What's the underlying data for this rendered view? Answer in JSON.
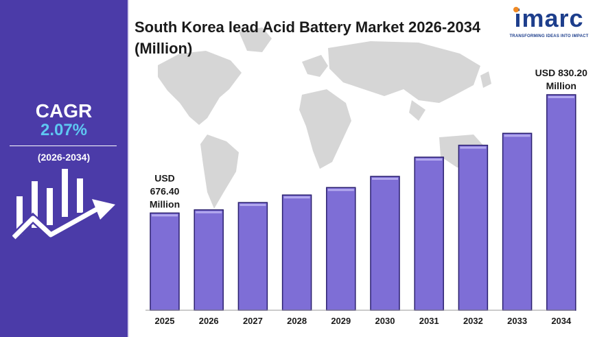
{
  "cagr": {
    "label": "CAGR",
    "value": "2.07%",
    "period": "(2026-2034)"
  },
  "logo": {
    "name": "imarc",
    "tagline": "TRANSFORMING IDEAS INTO IMPACT"
  },
  "colors": {
    "panel": "#4b3ba8",
    "accent": "#5ec8f2",
    "bar": "#7e6ed6",
    "bar_edge": "#2a1f6e"
  },
  "chart_data": {
    "type": "bar",
    "title": "South Korea lead Acid Battery Market 2026-2034 (Million)",
    "xlabel": "",
    "ylabel": "",
    "categories": [
      "2025",
      "2026",
      "2027",
      "2028",
      "2029",
      "2030",
      "2031",
      "2032",
      "2033",
      "2034"
    ],
    "values": [
      676.4,
      680.5,
      690.0,
      699.8,
      709.5,
      724.0,
      749.0,
      764.5,
      780.0,
      830.2
    ],
    "ylim": [
      550,
      850
    ],
    "grid": false,
    "annotations": [
      {
        "category": "2025",
        "lines": [
          "USD",
          "676.40",
          "Million"
        ]
      },
      {
        "category": "2034",
        "lines": [
          "USD 830.20",
          "Million"
        ]
      }
    ]
  }
}
